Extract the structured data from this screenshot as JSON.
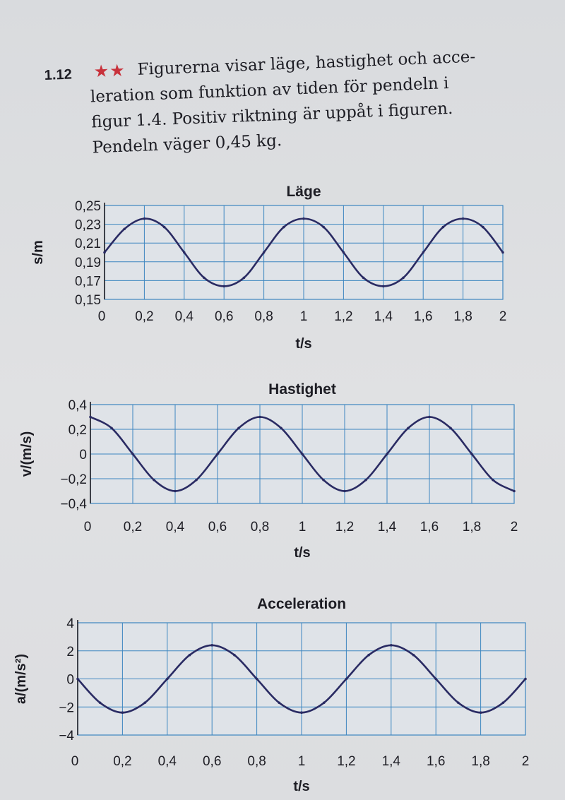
{
  "problem": {
    "number": "1.12",
    "stars": "★★",
    "lines": [
      "Figurerna visar läge, hastighet och acce-",
      "leration som funktion av tiden för pendeln i",
      "figur 1.4. Positiv riktning är uppåt i figuren.",
      "Pendeln väger 0,45 kg."
    ]
  },
  "colors": {
    "grid": "#3d86c0",
    "curve": "#2a2b63",
    "stars": "#c8323c"
  },
  "chart_data": [
    {
      "type": "line",
      "title": "Läge",
      "xlabel": "t/s",
      "ylabel": "s/m",
      "xlim": [
        0,
        2
      ],
      "ylim": [
        0.15,
        0.25
      ],
      "xticks": [
        "0",
        "0,2",
        "0,4",
        "0,6",
        "0,8",
        "1",
        "1,2",
        "1,4",
        "1,6",
        "1,8",
        "2"
      ],
      "yticks": [
        "0,25",
        "0,23",
        "0,21",
        "0,19",
        "0,17",
        "0,15"
      ],
      "grid": true,
      "series": [
        {
          "x": [
            0,
            0.1,
            0.2,
            0.3,
            0.4,
            0.5,
            0.6,
            0.7,
            0.8,
            0.9,
            1.0,
            1.1,
            1.2,
            1.3,
            1.4,
            1.5,
            1.6,
            1.7,
            1.8,
            1.9,
            2.0
          ],
          "values": [
            0.2,
            0.225,
            0.236,
            0.227,
            0.2,
            0.173,
            0.164,
            0.173,
            0.2,
            0.227,
            0.236,
            0.227,
            0.2,
            0.173,
            0.164,
            0.173,
            0.2,
            0.227,
            0.236,
            0.227,
            0.2
          ]
        }
      ]
    },
    {
      "type": "line",
      "title": "Hastighet",
      "xlabel": "t/s",
      "ylabel": "v/(m/s)",
      "xlim": [
        0,
        2
      ],
      "ylim": [
        -0.4,
        0.4
      ],
      "xticks": [
        "0",
        "0,2",
        "0,4",
        "0,6",
        "0,8",
        "1",
        "1,2",
        "1,4",
        "1,6",
        "1,8",
        "2"
      ],
      "yticks": [
        "0,4",
        "0,2",
        "0",
        "−0,2",
        "−0,4"
      ],
      "grid": true,
      "series": [
        {
          "x": [
            0,
            0.1,
            0.2,
            0.3,
            0.4,
            0.5,
            0.6,
            0.7,
            0.8,
            0.9,
            1.0,
            1.1,
            1.2,
            1.3,
            1.4,
            1.5,
            1.6,
            1.7,
            1.8,
            1.9,
            2.0
          ],
          "values": [
            0.3,
            0.21,
            0.0,
            -0.21,
            -0.3,
            -0.21,
            0.0,
            0.21,
            0.3,
            0.21,
            0.0,
            -0.21,
            -0.3,
            -0.21,
            0.0,
            0.21,
            0.3,
            0.21,
            0.0,
            -0.21,
            -0.3
          ]
        }
      ]
    },
    {
      "type": "line",
      "title": "Acceleration",
      "xlabel": "t/s",
      "ylabel": "a/(m/s²)",
      "xlim": [
        0,
        2
      ],
      "ylim": [
        -4,
        4
      ],
      "xticks": [
        "0",
        "0,2",
        "0,4",
        "0,6",
        "0,8",
        "1",
        "1,2",
        "1,4",
        "1,6",
        "1,8",
        "2"
      ],
      "yticks": [
        "4",
        "2",
        "0",
        "−2",
        "−4"
      ],
      "grid": true,
      "series": [
        {
          "x": [
            0,
            0.1,
            0.2,
            0.3,
            0.4,
            0.5,
            0.6,
            0.7,
            0.8,
            0.9,
            1.0,
            1.1,
            1.2,
            1.3,
            1.4,
            1.5,
            1.6,
            1.7,
            1.8,
            1.9,
            2.0
          ],
          "values": [
            0.0,
            -1.7,
            -2.4,
            -1.7,
            0.0,
            1.7,
            2.4,
            1.7,
            0.0,
            -1.7,
            -2.4,
            -1.7,
            0.0,
            1.7,
            2.4,
            1.7,
            0.0,
            -1.7,
            -2.4,
            -1.7,
            0.0
          ]
        }
      ]
    }
  ]
}
